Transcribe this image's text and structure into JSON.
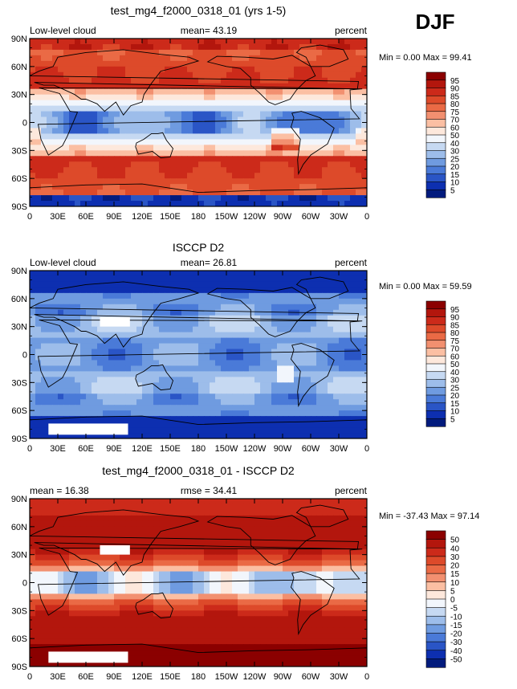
{
  "season": "DJF",
  "chart_data": [
    {
      "type": "heatmap",
      "title": "test_mg4_f2000_0318_01 (yrs 1-5)",
      "left_label": "Low-level cloud",
      "center_label": "mean=  43.19",
      "right_label": "percent",
      "stats": "Min =    0.00 Max =   99.41",
      "lat_ticks": [
        "90N",
        "60N",
        "30N",
        "0",
        "30S",
        "60S",
        "90S"
      ],
      "lon_ticks": [
        "0",
        "30E",
        "60E",
        "90E",
        "120E",
        "150E",
        "180",
        "150W",
        "120W",
        "90W",
        "60W",
        "30W",
        "0"
      ],
      "colorbar": {
        "levels": [
          "95",
          "90",
          "85",
          "80",
          "75",
          "70",
          "60",
          "50",
          "40",
          "30",
          "25",
          "20",
          "15",
          "10",
          "5"
        ],
        "colors": [
          "#8b0000",
          "#b3160d",
          "#cc2a1a",
          "#dd4a2a",
          "#ea6a45",
          "#f29070",
          "#fbbfa3",
          "#fde8dc",
          "#f2f6fc",
          "#c6d9f2",
          "#9dbdea",
          "#6f9be0",
          "#4a7ad8",
          "#2a55c6",
          "#0d2fb0",
          "#021b7d"
        ]
      },
      "field": "model"
    },
    {
      "type": "heatmap",
      "title": "ISCCP D2",
      "left_label": "Low-level cloud",
      "center_label": "mean=  26.81",
      "right_label": "percent",
      "stats": "Min =    0.00 Max =   59.59",
      "lat_ticks": [
        "90N",
        "60N",
        "30N",
        "0",
        "30S",
        "60S",
        "90S"
      ],
      "lon_ticks": [
        "0",
        "30E",
        "60E",
        "90E",
        "120E",
        "150E",
        "180",
        "150W",
        "120W",
        "90W",
        "60W",
        "30W",
        "0"
      ],
      "colorbar": {
        "levels": [
          "95",
          "90",
          "85",
          "80",
          "75",
          "70",
          "60",
          "50",
          "40",
          "30",
          "25",
          "20",
          "15",
          "10",
          "5"
        ],
        "colors": [
          "#8b0000",
          "#b3160d",
          "#cc2a1a",
          "#dd4a2a",
          "#ea6a45",
          "#f29070",
          "#fbbfa3",
          "#fde8dc",
          "#f2f6fc",
          "#c6d9f2",
          "#9dbdea",
          "#6f9be0",
          "#4a7ad8",
          "#2a55c6",
          "#0d2fb0",
          "#021b7d"
        ]
      },
      "field": "obs"
    },
    {
      "type": "heatmap",
      "title": "test_mg4_f2000_0318_01 - ISCCP D2",
      "left_label": "mean =  16.38",
      "center_label": "rmse =  34.41",
      "right_label": "percent",
      "stats": "Min = -37.43 Max =   97.14",
      "lat_ticks": [
        "90N",
        "60N",
        "30N",
        "0",
        "30S",
        "60S",
        "90S"
      ],
      "lon_ticks": [
        "0",
        "30E",
        "60E",
        "90E",
        "120E",
        "150E",
        "180",
        "150W",
        "120W",
        "90W",
        "60W",
        "30W",
        "0"
      ],
      "colorbar": {
        "levels": [
          "50",
          "40",
          "30",
          "20",
          "15",
          "10",
          "5",
          "0",
          "-5",
          "-10",
          "-15",
          "-20",
          "-30",
          "-40",
          "-50"
        ],
        "colors": [
          "#8b0000",
          "#b3160d",
          "#cc2a1a",
          "#dd4a2a",
          "#ea6a45",
          "#f29070",
          "#fbbfa3",
          "#fde8dc",
          "#f2f6fc",
          "#c6d9f2",
          "#9dbdea",
          "#6f9be0",
          "#4a7ad8",
          "#2a55c6",
          "#0d2fb0",
          "#021b7d"
        ]
      },
      "field": "diff"
    }
  ]
}
